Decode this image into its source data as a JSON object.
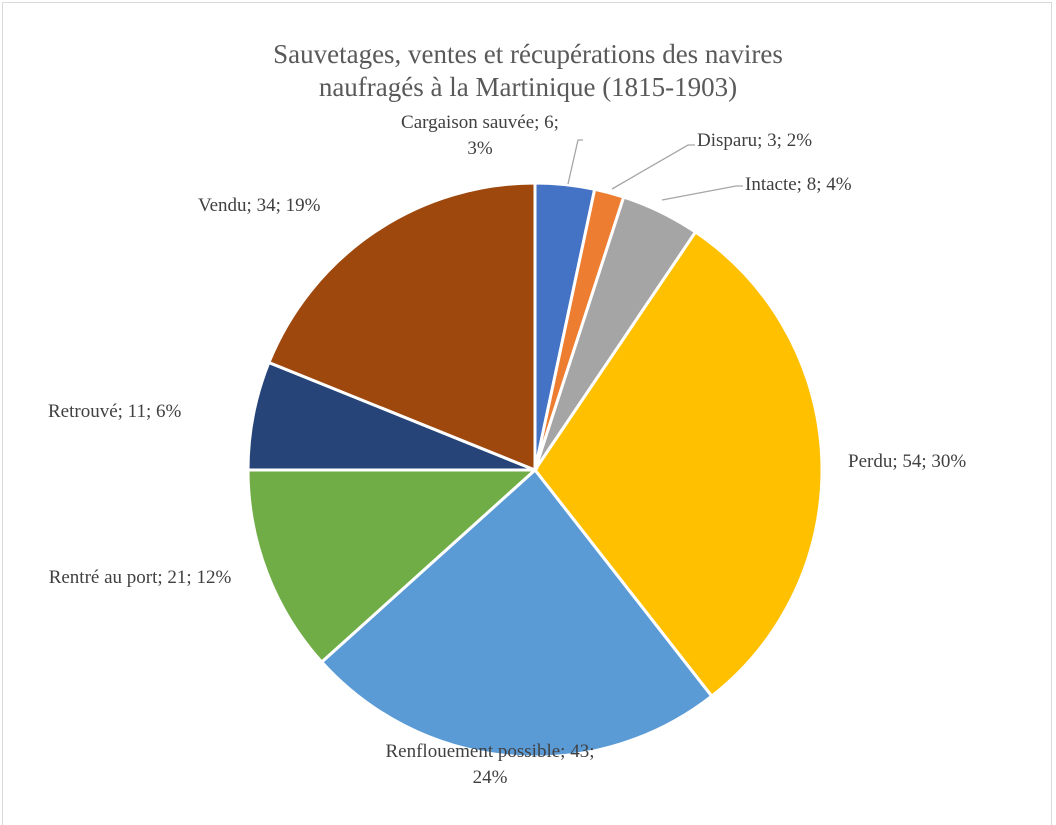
{
  "chart_data": {
    "type": "pie",
    "title": "Sauvetages, ventes et récupérations des navires naufragés à la Martinique (1815-1903)",
    "values": [
      6,
      3,
      8,
      54,
      43,
      21,
      11,
      34
    ],
    "value_labels": [
      "Cargaison sauvée; 6; 3%",
      "Disparu; 3; 2%",
      "Intacte; 8; 4%",
      "Perdu; 54; 30%",
      "Renflouement possible; 43; 24%",
      "Rentré au port; 21; 12%",
      "Retrouvé; 11; 6%",
      "Vendu; 34; 19%"
    ],
    "colors": [
      "#4472c4",
      "#ed7d31",
      "#a5a5a5",
      "#ffc000",
      "#5b9bd5",
      "#70ad47",
      "#264478",
      "#9e480e"
    ]
  }
}
